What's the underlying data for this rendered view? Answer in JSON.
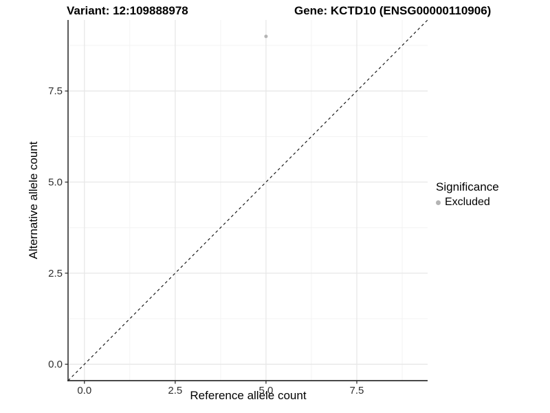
{
  "header": {
    "title_variant": "Variant: 12:109888978",
    "title_gene": "Gene: KCTD10 (ENSG00000110906)"
  },
  "legend": {
    "title": "Significance",
    "entries": [
      {
        "label": "Excluded",
        "color": "#b4b4b4"
      }
    ],
    "position": "right"
  },
  "chart_data": {
    "type": "scatter",
    "title": "Variant: 12:109888978   Gene: KCTD10 (ENSG00000110906)",
    "xlabel": "Reference allele count",
    "ylabel": "Alternative allele count",
    "xlim": [
      -0.45,
      9.45
    ],
    "ylim": [
      -0.45,
      9.45
    ],
    "xticks": [
      0.0,
      2.5,
      5.0,
      7.5
    ],
    "xtick_labels": [
      "0.0",
      "2.5",
      "5.0",
      "7.5"
    ],
    "yticks": [
      0.0,
      2.5,
      5.0,
      7.5
    ],
    "ytick_labels": [
      "0.0",
      "2.5",
      "5.0",
      "7.5"
    ],
    "minor_ticks": [
      1.25,
      3.75,
      6.25,
      8.75
    ],
    "grid": true,
    "legend_position": "right",
    "reference_line": {
      "type": "identity",
      "style": "dashed",
      "color": "#1a1a1a"
    },
    "series": [
      {
        "name": "Excluded",
        "color": "#b4b4b4",
        "points": [
          {
            "x": 5.0,
            "y": 9.0
          }
        ]
      }
    ]
  }
}
